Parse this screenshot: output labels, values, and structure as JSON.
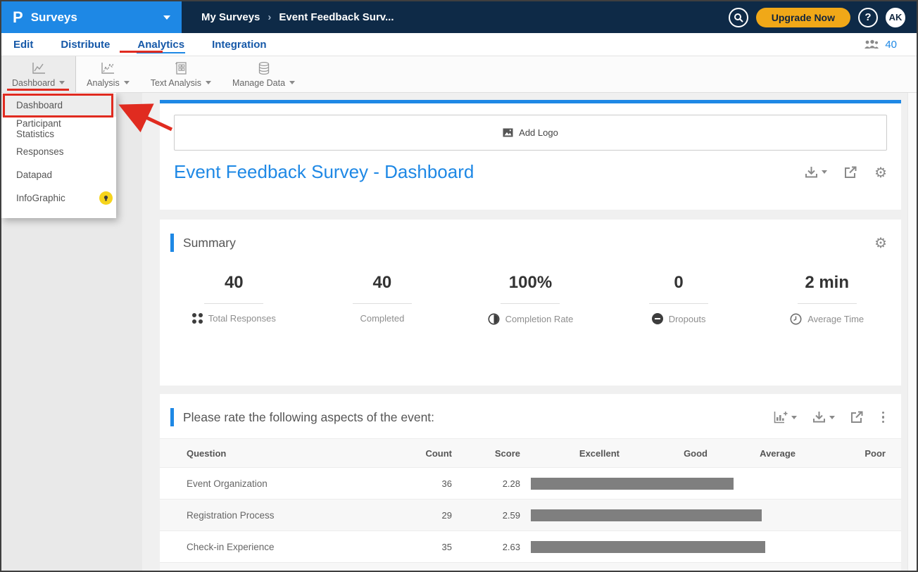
{
  "icons": {
    "caret_down": "",
    "breadcrumb_sep": "›",
    "gear": "⚙"
  },
  "colors": {
    "accent_blue": "#1e88e5",
    "navy": "#0e2a47",
    "orange": "#f0a818",
    "annotation_red": "#e02b20",
    "bar_gray": "#7f7f7f"
  },
  "topbar": {
    "logo": "P",
    "product": "Surveys",
    "breadcrumb": {
      "root": "My Surveys",
      "current": "Event Feedback Surv..."
    },
    "upgrade_label": "Upgrade Now",
    "help_label": "?",
    "avatar_initials": "AK"
  },
  "nav": {
    "tabs": [
      {
        "label": "Edit"
      },
      {
        "label": "Distribute"
      },
      {
        "label": "Analytics"
      },
      {
        "label": "Integration"
      }
    ],
    "responses_count": "40"
  },
  "toolbar": {
    "items": [
      {
        "label": "Dashboard"
      },
      {
        "label": "Analysis"
      },
      {
        "label": "Text Analysis"
      },
      {
        "label": "Manage Data"
      }
    ]
  },
  "menu": {
    "items": [
      {
        "label": "Dashboard"
      },
      {
        "label": "Participant Statistics"
      },
      {
        "label": "Responses"
      },
      {
        "label": "Datapad"
      },
      {
        "label": "InfoGraphic"
      }
    ]
  },
  "page": {
    "add_logo_label": "Add Logo",
    "title": "Event Feedback Survey - Dashboard"
  },
  "summary": {
    "heading": "Summary",
    "stats": [
      {
        "value": "40",
        "label": "Total Responses",
        "icon": "dots-grid-icon"
      },
      {
        "value": "40",
        "label": "Completed",
        "icon": ""
      },
      {
        "value": "100%",
        "label": "Completion Rate",
        "icon": "half-circle-icon"
      },
      {
        "value": "0",
        "label": "Dropouts",
        "icon": "minus-circle-icon"
      },
      {
        "value": "2 min",
        "label": "Average Time",
        "icon": "clock-icon"
      }
    ]
  },
  "question_card": {
    "heading": "Please rate the following aspects of the event:"
  },
  "chart_data": {
    "type": "table",
    "title": "Please rate the following aspects of the event:",
    "columns": [
      "Question",
      "Count",
      "Score",
      "Excellent",
      "Good",
      "Average",
      "Poor"
    ],
    "rows": [
      {
        "question": "Event Organization",
        "count": 36,
        "score": 2.28
      },
      {
        "question": "Registration Process",
        "count": 29,
        "score": 2.59
      },
      {
        "question": "Check-in Experience",
        "count": 35,
        "score": 2.63
      }
    ],
    "score_max": 4,
    "bar_color": "#7f7f7f",
    "legend_position": "none",
    "grid": false
  }
}
